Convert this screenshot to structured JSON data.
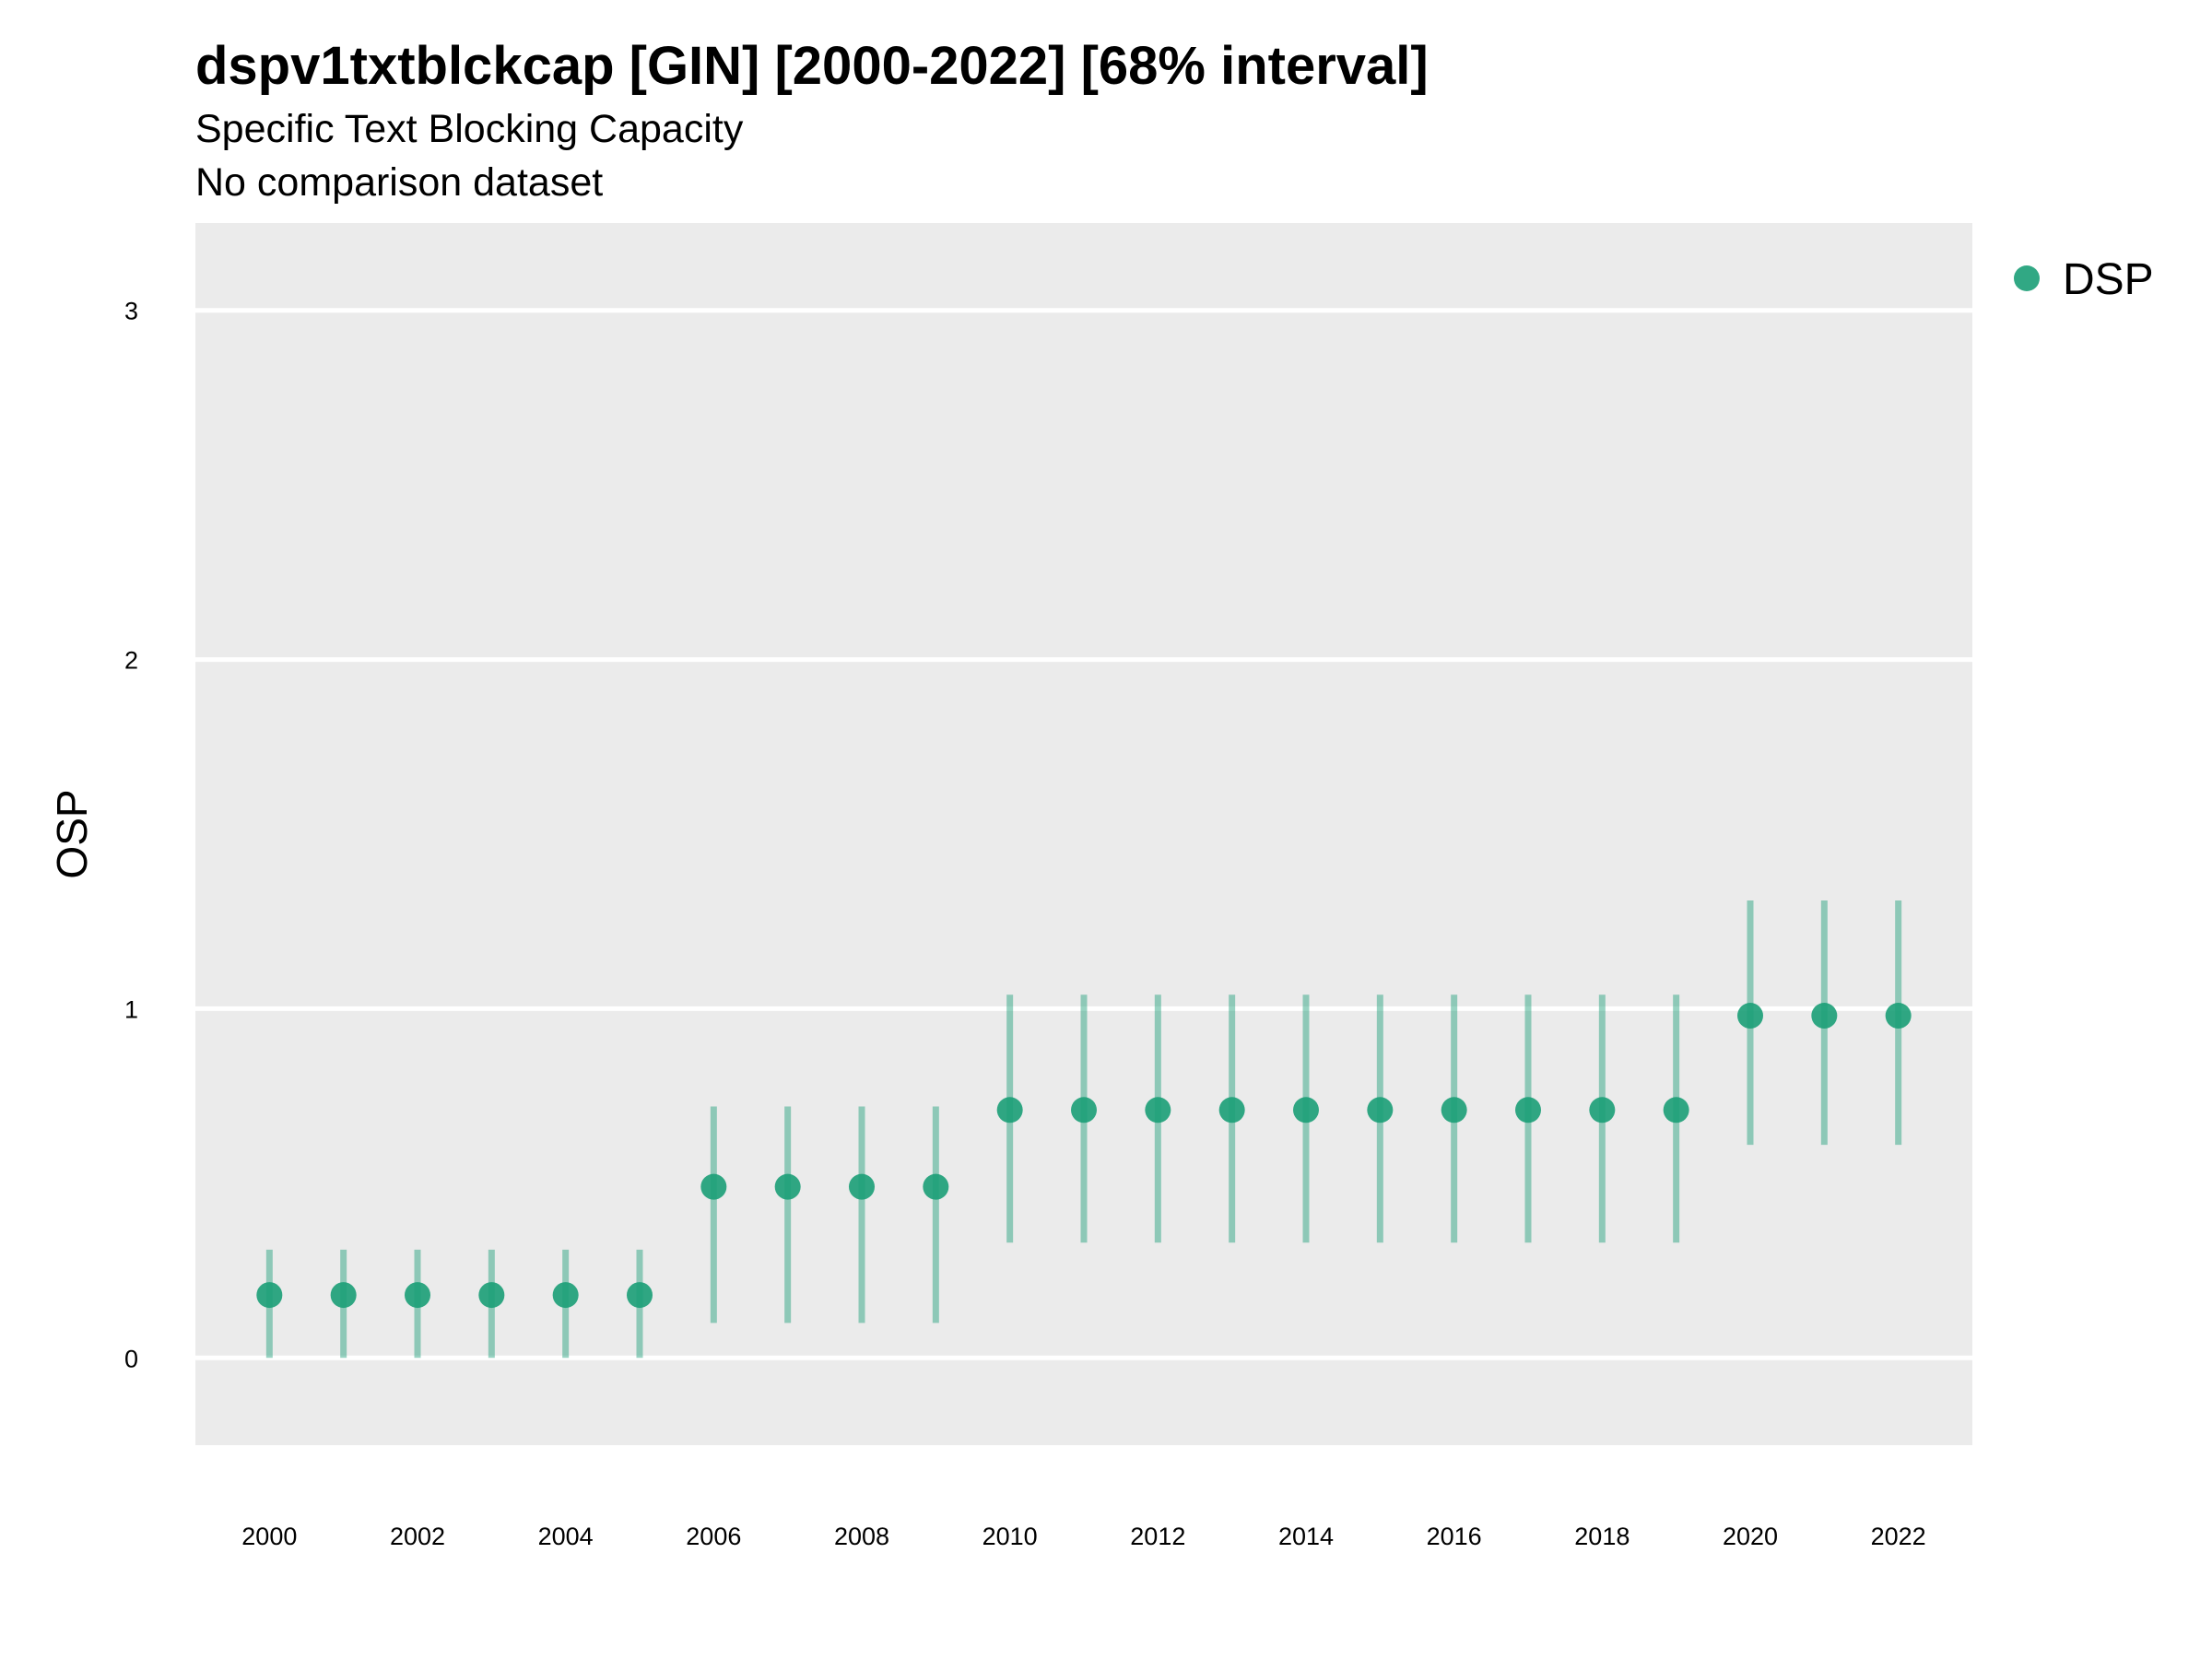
{
  "chart_data": {
    "type": "scatter",
    "title": "dspv1txtblckcap [GIN] [2000-2022] [68% interval]",
    "subtitle": "Specific Text Blocking Capacity",
    "caption_line": "No comparison dataset",
    "xlabel": "",
    "ylabel": "OSP",
    "ylim": [
      -0.25,
      3.25
    ],
    "xlim": [
      1999,
      2023
    ],
    "y_ticks": [
      "0",
      "1",
      "2",
      "3"
    ],
    "x_ticks": [
      "2000",
      "2002",
      "2004",
      "2006",
      "2008",
      "2010",
      "2012",
      "2014",
      "2016",
      "2018",
      "2020",
      "2022"
    ],
    "grid": true,
    "legend_position": "right",
    "series": [
      {
        "name": "DSP",
        "color": "#1b9e77",
        "points": [
          {
            "x": 2000,
            "y": 0.18,
            "lo": 0.0,
            "hi": 0.31
          },
          {
            "x": 2001,
            "y": 0.18,
            "lo": 0.0,
            "hi": 0.31
          },
          {
            "x": 2002,
            "y": 0.18,
            "lo": 0.0,
            "hi": 0.31
          },
          {
            "x": 2003,
            "y": 0.18,
            "lo": 0.0,
            "hi": 0.31
          },
          {
            "x": 2004,
            "y": 0.18,
            "lo": 0.0,
            "hi": 0.31
          },
          {
            "x": 2005,
            "y": 0.18,
            "lo": 0.0,
            "hi": 0.31
          },
          {
            "x": 2006,
            "y": 0.49,
            "lo": 0.1,
            "hi": 0.72
          },
          {
            "x": 2007,
            "y": 0.49,
            "lo": 0.1,
            "hi": 0.72
          },
          {
            "x": 2008,
            "y": 0.49,
            "lo": 0.1,
            "hi": 0.72
          },
          {
            "x": 2009,
            "y": 0.49,
            "lo": 0.1,
            "hi": 0.72
          },
          {
            "x": 2010,
            "y": 0.71,
            "lo": 0.33,
            "hi": 1.04
          },
          {
            "x": 2011,
            "y": 0.71,
            "lo": 0.33,
            "hi": 1.04
          },
          {
            "x": 2012,
            "y": 0.71,
            "lo": 0.33,
            "hi": 1.04
          },
          {
            "x": 2013,
            "y": 0.71,
            "lo": 0.33,
            "hi": 1.04
          },
          {
            "x": 2014,
            "y": 0.71,
            "lo": 0.33,
            "hi": 1.04
          },
          {
            "x": 2015,
            "y": 0.71,
            "lo": 0.33,
            "hi": 1.04
          },
          {
            "x": 2016,
            "y": 0.71,
            "lo": 0.33,
            "hi": 1.04
          },
          {
            "x": 2017,
            "y": 0.71,
            "lo": 0.33,
            "hi": 1.04
          },
          {
            "x": 2018,
            "y": 0.71,
            "lo": 0.33,
            "hi": 1.04
          },
          {
            "x": 2019,
            "y": 0.71,
            "lo": 0.33,
            "hi": 1.04
          },
          {
            "x": 2020,
            "y": 0.98,
            "lo": 0.61,
            "hi": 1.31
          },
          {
            "x": 2021,
            "y": 0.98,
            "lo": 0.61,
            "hi": 1.31
          },
          {
            "x": 2022,
            "y": 0.98,
            "lo": 0.61,
            "hi": 1.31
          }
        ]
      }
    ],
    "panel_color": "#ebebeb",
    "grid_color": "#ffffff"
  }
}
